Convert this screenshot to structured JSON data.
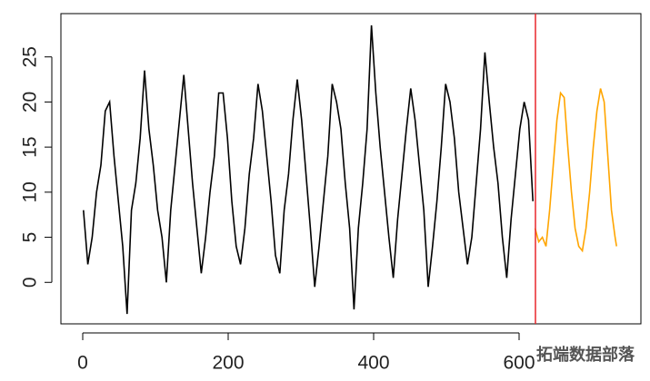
{
  "chart_data": {
    "type": "line",
    "xlim": [
      -30,
      767.5
    ],
    "ylim": [
      -4.6,
      29.8
    ],
    "xticks": [
      0,
      200,
      400,
      600
    ],
    "yticks": [
      0,
      5,
      10,
      15,
      20,
      25
    ],
    "vline": {
      "x": 622.5,
      "color": "#e8262b"
    },
    "watermark": "拓端数据部落",
    "series": [
      {
        "color": "#000000",
        "x": [
          1,
          7,
          13,
          19,
          25,
          31,
          37,
          43,
          49,
          55,
          61,
          67,
          73,
          79,
          85,
          91,
          97,
          103,
          109,
          115,
          121,
          127,
          133,
          139,
          145,
          151,
          157,
          163,
          169,
          175,
          181,
          187,
          193,
          199,
          205,
          211,
          217,
          223,
          229,
          235,
          241,
          247,
          253,
          259,
          265,
          271,
          277,
          283,
          289,
          295,
          301,
          307,
          313,
          319,
          325,
          331,
          337,
          343,
          349,
          355,
          361,
          367,
          373,
          379,
          385,
          391,
          397,
          403,
          409,
          415,
          421,
          427,
          433,
          439,
          445,
          451,
          457,
          463,
          469,
          475,
          481,
          487,
          493,
          499,
          505,
          511,
          517,
          523,
          529,
          535,
          541,
          547,
          553,
          559,
          565,
          571,
          577,
          583,
          589,
          595,
          601,
          607,
          613,
          619
        ],
        "values": [
          8,
          2,
          5,
          10,
          13,
          19,
          20,
          14,
          9,
          4,
          -3.5,
          8,
          11,
          16,
          23.5,
          17,
          13,
          8,
          5,
          0,
          8,
          13,
          18,
          23,
          17,
          11,
          6,
          1,
          5,
          10,
          14,
          21,
          21,
          16,
          9,
          4,
          2,
          6,
          12,
          16,
          22,
          19,
          14,
          9,
          3,
          1,
          8,
          12,
          18,
          22.5,
          18,
          12,
          6,
          -0.5,
          4,
          9,
          14,
          22,
          20,
          17,
          11,
          6,
          -3,
          6,
          11,
          17,
          28.5,
          21,
          15,
          10,
          5,
          0.5,
          7,
          12,
          17,
          21.5,
          18,
          13,
          8,
          -0.5,
          4,
          9,
          15,
          22,
          20,
          16,
          10,
          6,
          2,
          5,
          11,
          17,
          25.5,
          20,
          15,
          11,
          5,
          0.5,
          7,
          12,
          17,
          20,
          18,
          9
        ]
      },
      {
        "color": "#ffa500",
        "x": [
          622,
          627,
          632,
          637,
          642,
          647,
          652,
          657,
          662,
          667,
          672,
          677,
          682,
          687,
          692,
          697,
          702,
          707,
          712,
          717,
          722,
          727,
          732,
          734
        ],
        "values": [
          6,
          4.5,
          5,
          4,
          8,
          13,
          18,
          21,
          20.5,
          15,
          10,
          6,
          4,
          3.5,
          6,
          10,
          15,
          19,
          21.5,
          20,
          14,
          8,
          5,
          4
        ]
      }
    ]
  }
}
